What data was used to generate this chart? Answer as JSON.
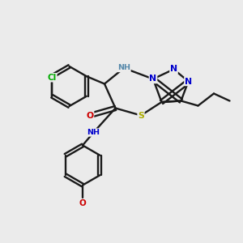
{
  "bg_color": "#ebebeb",
  "colors": {
    "bond": "#1a1a1a",
    "N": "#0000cc",
    "O": "#cc0000",
    "S": "#aaaa00",
    "Cl": "#00aa00",
    "NH_color": "#5588aa",
    "C": "#1a1a1a"
  },
  "lw": 1.7,
  "fs": 7.8,
  "figsize": [
    3.0,
    3.0
  ],
  "dpi": 100
}
